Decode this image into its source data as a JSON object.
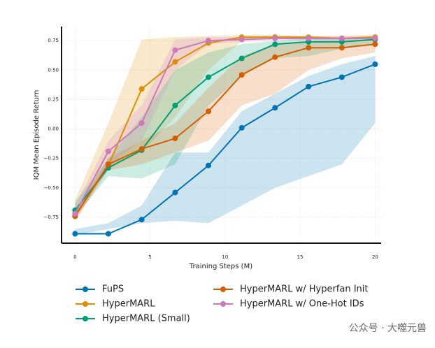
{
  "chart_data": {
    "type": "line",
    "x_label": "Training Steps (M)",
    "y_label": "IQM Mean Episode Return",
    "x": [
      0,
      2.22,
      4.44,
      6.67,
      8.89,
      11.11,
      13.33,
      15.56,
      17.78,
      20
    ],
    "xlim": [
      -0.9,
      20.4
    ],
    "ylim": [
      -0.97,
      0.87
    ],
    "xticks": [
      0,
      5,
      10,
      15,
      20
    ],
    "yticks": [
      {
        "value": -0.75,
        "label": "−0.75"
      },
      {
        "value": -0.5,
        "label": "−0.50"
      },
      {
        "value": -0.25,
        "label": "−0.25"
      },
      {
        "value": 0,
        "label": "0.00"
      },
      {
        "value": 0.25,
        "label": "0.25"
      },
      {
        "value": 0.5,
        "label": "0.50"
      },
      {
        "value": 0.75,
        "label": "0.75"
      }
    ],
    "grid": true,
    "series": [
      {
        "name": "FuPS",
        "color": "#0173b2",
        "values": [
          -0.89,
          -0.89,
          -0.77,
          -0.54,
          -0.31,
          0.01,
          0.18,
          0.36,
          0.44,
          0.55
        ],
        "lower": [
          -0.9,
          -0.85,
          -0.8,
          -0.78,
          -0.8,
          -0.65,
          -0.5,
          -0.4,
          -0.3,
          0.05
        ],
        "upper": [
          -0.85,
          -0.8,
          -0.65,
          -0.2,
          -0.2,
          0.15,
          0.3,
          0.45,
          0.55,
          0.62
        ]
      },
      {
        "name": "HyperMARL",
        "color": "#de8f05",
        "values": [
          -0.74,
          -0.31,
          0.34,
          0.57,
          0.73,
          0.78,
          0.78,
          0.78,
          0.77,
          0.78
        ],
        "lower": [
          -0.78,
          -0.33,
          -0.2,
          0.1,
          0.5,
          0.75,
          0.76,
          0.76,
          0.75,
          0.76
        ],
        "upper": [
          -0.6,
          0.05,
          0.76,
          0.78,
          0.79,
          0.8,
          0.8,
          0.79,
          0.79,
          0.8
        ]
      },
      {
        "name": "HyperMARL (Small)",
        "color": "#029e73",
        "values": [
          -0.69,
          -0.33,
          -0.18,
          0.2,
          0.44,
          0.6,
          0.72,
          0.74,
          0.74,
          0.76
        ],
        "lower": [
          -0.75,
          -0.4,
          -0.42,
          -0.3,
          0.2,
          0.45,
          0.6,
          0.62,
          0.68,
          0.72
        ],
        "upper": [
          -0.62,
          -0.25,
          0.1,
          0.5,
          0.65,
          0.72,
          0.75,
          0.77,
          0.77,
          0.79
        ]
      },
      {
        "name": "HyperMARL w/ Hyperfan Init",
        "color": "#d55e00",
        "values": [
          -0.74,
          -0.3,
          -0.17,
          -0.08,
          0.15,
          0.46,
          0.61,
          0.69,
          0.69,
          0.72
        ],
        "lower": [
          -0.78,
          -0.35,
          -0.3,
          -0.2,
          -0.1,
          0.2,
          0.3,
          0.5,
          0.6,
          0.65
        ],
        "upper": [
          -0.7,
          -0.25,
          -0.1,
          0.05,
          0.35,
          0.62,
          0.72,
          0.74,
          0.74,
          0.76
        ]
      },
      {
        "name": "HyperMARL w/ One-Hot IDs",
        "color": "#cc78bc",
        "values": [
          -0.72,
          -0.19,
          0.05,
          0.67,
          0.75,
          0.76,
          0.77,
          0.77,
          0.77,
          0.77
        ],
        "lower": [
          -0.77,
          -0.3,
          -0.1,
          0.5,
          0.72,
          0.74,
          0.75,
          0.75,
          0.75,
          0.75
        ],
        "upper": [
          -0.65,
          -0.1,
          0.2,
          0.76,
          0.78,
          0.78,
          0.79,
          0.79,
          0.79,
          0.79
        ]
      }
    ],
    "watermark": "公众号 · 大噬元兽"
  }
}
